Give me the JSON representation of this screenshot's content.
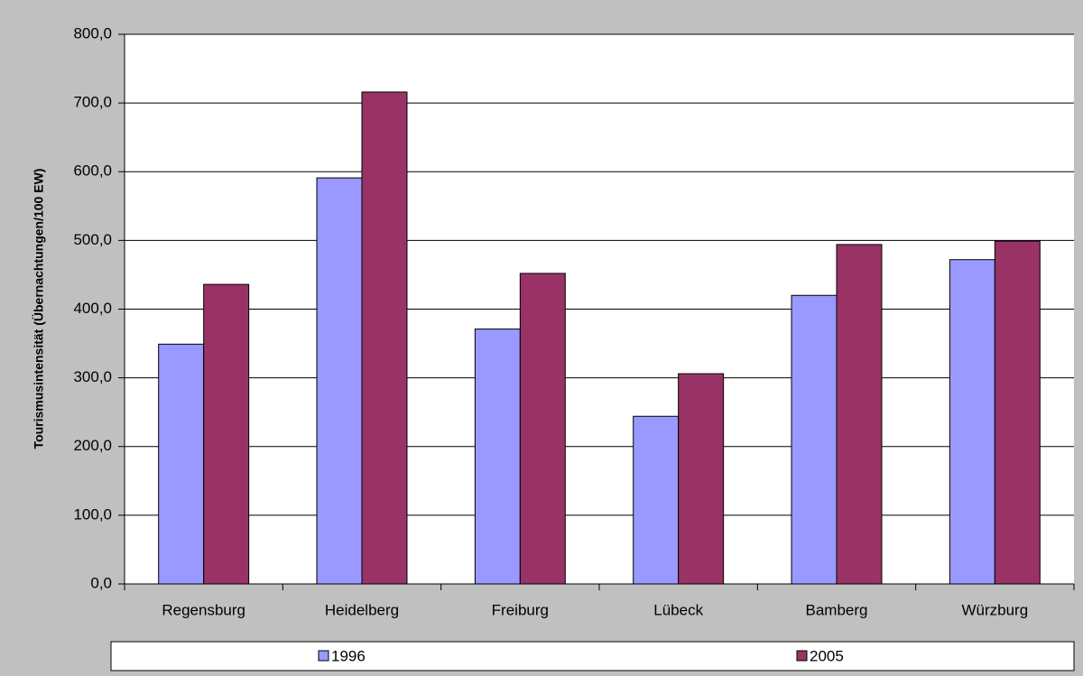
{
  "chart_data": {
    "type": "bar",
    "ylabel": "Tourismusintensität (Übernachtungen/100 EW)",
    "categories": [
      "Regensburg",
      "Heidelberg",
      "Freiburg",
      "Lübeck",
      "Bamberg",
      "Würzburg"
    ],
    "series": [
      {
        "name": "1996",
        "color": "#9999ff",
        "values": [
          349,
          591,
          371,
          244,
          420,
          472
        ]
      },
      {
        "name": "2005",
        "color": "#993366",
        "values": [
          436,
          716,
          452,
          306,
          494,
          499
        ]
      }
    ],
    "ylim": [
      0,
      800
    ],
    "yticks": [
      {
        "value": 0,
        "label": "0,0"
      },
      {
        "value": 100,
        "label": "100,0"
      },
      {
        "value": 200,
        "label": "200,0"
      },
      {
        "value": 300,
        "label": "300,0"
      },
      {
        "value": 400,
        "label": "400,0"
      },
      {
        "value": 500,
        "label": "500,0"
      },
      {
        "value": 600,
        "label": "600,0"
      },
      {
        "value": 700,
        "label": "700,0"
      },
      {
        "value": 800,
        "label": "800,0"
      }
    ],
    "grid": true,
    "legend": "bottom"
  }
}
